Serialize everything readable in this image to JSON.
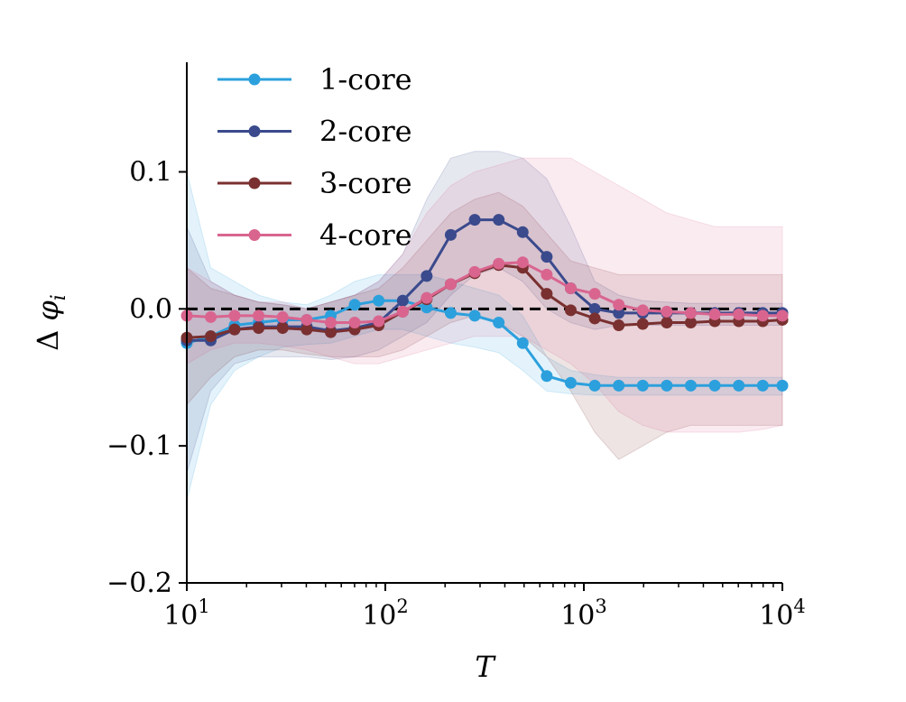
{
  "chart_data": {
    "type": "line",
    "xscale": "log",
    "xlim": [
      10,
      10000
    ],
    "ylim": [
      -0.2,
      0.18
    ],
    "xlabel": "T",
    "ylabel": "Δ φ_i",
    "x_ticks": [
      {
        "value": 10,
        "base": "10",
        "exp": "1"
      },
      {
        "value": 100,
        "base": "10",
        "exp": "2"
      },
      {
        "value": 1000,
        "base": "10",
        "exp": "3"
      },
      {
        "value": 10000,
        "base": "10",
        "exp": "4"
      }
    ],
    "y_ticks": [
      {
        "value": 0.1,
        "label": "0.1"
      },
      {
        "value": 0.0,
        "label": "0.0"
      },
      {
        "value": -0.1,
        "label": "−0.1"
      },
      {
        "value": -0.2,
        "label": "−0.2"
      }
    ],
    "reference_line": {
      "y": 0,
      "style": "dashed",
      "color": "#000000"
    },
    "legend_position": "top-left",
    "grid": false,
    "x": [
      10,
      13.2,
      17.4,
      23.0,
      30.4,
      40.2,
      53.1,
      70.1,
      92.6,
      122.4,
      161.6,
      213.5,
      282.1,
      372.6,
      492.2,
      650.3,
      859.0,
      1134.8,
      1499.1,
      1980.4,
      2616.1,
      3456.0,
      4565.5,
      6031.4,
      7967.6,
      10000
    ],
    "series": [
      {
        "name": "1-core",
        "color": "#2ca0dd",
        "values": [
          -0.025,
          -0.02,
          -0.012,
          -0.01,
          -0.008,
          -0.008,
          -0.005,
          0.003,
          0.006,
          0.006,
          0.001,
          -0.003,
          -0.005,
          -0.01,
          -0.025,
          -0.049,
          -0.054,
          -0.056,
          -0.056,
          -0.056,
          -0.056,
          -0.056,
          -0.056,
          -0.056,
          -0.056,
          -0.056
        ],
        "band_upper": [
          0.1,
          0.03,
          0.02,
          0.01,
          0.005,
          0.003,
          0.01,
          0.02,
          0.025,
          0.025,
          0.025,
          0.02,
          0.015,
          0.01,
          -0.005,
          -0.035,
          -0.045,
          -0.048,
          -0.05,
          -0.05,
          -0.05,
          -0.05,
          -0.05,
          -0.05,
          -0.05,
          -0.05
        ],
        "band_lower": [
          -0.14,
          -0.07,
          -0.045,
          -0.035,
          -0.028,
          -0.026,
          -0.025,
          -0.02,
          -0.015,
          -0.015,
          -0.02,
          -0.025,
          -0.028,
          -0.032,
          -0.045,
          -0.06,
          -0.062,
          -0.063,
          -0.063,
          -0.063,
          -0.063,
          -0.063,
          -0.063,
          -0.063,
          -0.063,
          -0.063
        ]
      },
      {
        "name": "2-core",
        "color": "#3a4a8c",
        "values": [
          -0.023,
          -0.023,
          -0.015,
          -0.013,
          -0.013,
          -0.013,
          -0.016,
          -0.014,
          -0.01,
          0.006,
          0.024,
          0.054,
          0.065,
          0.065,
          0.056,
          0.038,
          0.015,
          0.0,
          -0.003,
          -0.003,
          -0.003,
          -0.003,
          -0.003,
          -0.003,
          -0.003,
          -0.003
        ],
        "band_upper": [
          0.06,
          0.02,
          0.01,
          0.005,
          0.003,
          0.0,
          0.005,
          0.01,
          0.02,
          0.04,
          0.08,
          0.11,
          0.115,
          0.115,
          0.11,
          0.095,
          0.06,
          0.02,
          0.01,
          0.006,
          0.005,
          0.004,
          0.004,
          0.004,
          0.004,
          0.004
        ],
        "band_lower": [
          -0.12,
          -0.06,
          -0.04,
          -0.035,
          -0.035,
          -0.035,
          -0.037,
          -0.035,
          -0.03,
          -0.02,
          -0.01,
          0.01,
          0.025,
          0.03,
          0.02,
          0.0,
          -0.01,
          -0.015,
          -0.012,
          -0.012,
          -0.012,
          -0.012,
          -0.012,
          -0.012,
          -0.012,
          -0.012
        ]
      },
      {
        "name": "3-core",
        "color": "#7a3030",
        "values": [
          -0.021,
          -0.02,
          -0.015,
          -0.014,
          -0.014,
          -0.015,
          -0.017,
          -0.015,
          -0.012,
          -0.002,
          0.007,
          0.018,
          0.026,
          0.032,
          0.03,
          0.011,
          -0.001,
          -0.007,
          -0.012,
          -0.011,
          -0.01,
          -0.01,
          -0.009,
          -0.009,
          -0.009,
          -0.008
        ],
        "band_upper": [
          0.03,
          0.015,
          0.01,
          0.005,
          0.003,
          0.0,
          0.005,
          0.01,
          0.015,
          0.03,
          0.05,
          0.07,
          0.08,
          0.085,
          0.075,
          0.055,
          0.035,
          0.03,
          0.025,
          0.025,
          0.025,
          0.025,
          0.025,
          0.025,
          0.025,
          0.025
        ],
        "band_lower": [
          -0.07,
          -0.05,
          -0.035,
          -0.03,
          -0.03,
          -0.033,
          -0.035,
          -0.035,
          -0.035,
          -0.03,
          -0.02,
          -0.01,
          -0.005,
          -0.01,
          -0.02,
          -0.035,
          -0.06,
          -0.09,
          -0.11,
          -0.1,
          -0.09,
          -0.085,
          -0.085,
          -0.085,
          -0.085,
          -0.085
        ]
      },
      {
        "name": "4-core",
        "color": "#d9658f",
        "values": [
          -0.005,
          -0.006,
          -0.005,
          -0.005,
          -0.006,
          -0.008,
          -0.01,
          -0.01,
          -0.009,
          -0.002,
          0.008,
          0.018,
          0.027,
          0.033,
          0.034,
          0.025,
          0.015,
          0.011,
          0.003,
          -0.001,
          -0.002,
          -0.003,
          -0.004,
          -0.004,
          -0.005,
          -0.005
        ],
        "band_upper": [
          0.03,
          0.02,
          0.01,
          0.005,
          0.005,
          0.0,
          0.005,
          0.01,
          0.02,
          0.04,
          0.07,
          0.09,
          0.1,
          0.105,
          0.11,
          0.11,
          0.11,
          0.1,
          0.09,
          0.08,
          0.07,
          0.065,
          0.06,
          0.06,
          0.06,
          0.06
        ],
        "band_lower": [
          -0.04,
          -0.03,
          -0.025,
          -0.025,
          -0.027,
          -0.03,
          -0.035,
          -0.04,
          -0.04,
          -0.035,
          -0.03,
          -0.025,
          -0.02,
          -0.02,
          -0.02,
          -0.03,
          -0.04,
          -0.055,
          -0.075,
          -0.085,
          -0.09,
          -0.09,
          -0.09,
          -0.09,
          -0.088,
          -0.085
        ]
      }
    ]
  }
}
